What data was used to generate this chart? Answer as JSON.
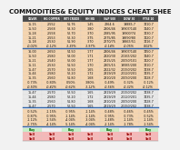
{
  "title": "COMMODITIES& EQUITY INDICES CHEAT SHEE",
  "columns": [
    "SILVER",
    "HG COPPER",
    "WTI CRUDE",
    "HH NG",
    "S&P 500",
    "DOW 30",
    "FTSE 10"
  ],
  "header_bg": "#4a4a4a",
  "header_fg": "#ffffff",
  "separator_color": "#3366aa",
  "bg_color": "#f2f2f2",
  "sections": [
    {
      "bg": "#f5d5b0",
      "rows": [
        [
          "15.15",
          "2.552",
          "51.76",
          "1.45",
          "2264.6",
          "19885.7",
          "7410.7"
        ],
        [
          "15.50",
          "2.568",
          "53.30",
          "3.80",
          "2306/46",
          "19907/140",
          "7440.7"
        ],
        [
          "15.28",
          "2.558",
          "52.70",
          "3.70",
          "2285/95",
          "19900/74",
          "7430.7"
        ],
        [
          "15.21",
          "2.553",
          "52.30",
          "3.75",
          "2275/85",
          "19890/80",
          "7420.7"
        ],
        [
          "15.18",
          "2.530",
          "51.90",
          "3.70",
          "2270/75",
          "19865/51",
          "7416.7"
        ],
        [
          "-0.02%",
          "-0.12%",
          "3.39%",
          "3.97%",
          "-0.14%",
          "-0.05%",
          "0.02%"
        ]
      ],
      "last_row_italic": true
    },
    {
      "bg": "#f5d5b0",
      "rows": [
        [
          "16.00",
          "2.650",
          "54.50",
          "1.77",
          "2306/46",
          "19907/140",
          "7450.7"
        ],
        [
          "15.50",
          "2.580",
          "53.00",
          "1.71",
          "2320/30",
          "20165/202",
          "7440.7"
        ],
        [
          "15.21",
          "2.540",
          "52.00",
          "1.77",
          "2315/25",
          "20050/101",
          "7420.7"
        ],
        [
          "15.11",
          "2.530",
          "51.50",
          "1.70",
          "2305/15",
          "19985/200",
          "7410.7"
        ],
        [
          "15.47",
          "2.570",
          "52.50",
          "1.65",
          "2322/32",
          "20150/202",
          "7438.7"
        ],
        [
          "15.44",
          "2.580",
          "52.20",
          "1.72",
          "2319/29",
          "20120/201",
          "7435.7"
        ],
        [
          "15.35",
          "2.560",
          "51.80",
          "1.68",
          "2310/20",
          "20050/200",
          "7428.7"
        ],
        [
          "-0.73%",
          "-0.80%",
          "0.50%",
          "3.80%",
          "-0.49%",
          "-0.32%",
          "-0.12%"
        ],
        [
          "-0.50%",
          "-0.42%",
          "-0.62%",
          "3.12%",
          "-0.56%",
          "-0.32%",
          "-0.12%"
        ]
      ],
      "last_row_italic": true
    },
    {
      "bg": "#e8e8e8",
      "rows": [
        [
          "15.47",
          "2.570",
          "52.50",
          "1.65",
          "2319/29",
          "20150/202",
          "7438.7"
        ],
        [
          "15.44",
          "2.580",
          "52.20",
          "1.72",
          "2319/29",
          "20120/201",
          "7435.7"
        ],
        [
          "15.35",
          "2.560",
          "51.80",
          "1.68",
          "2310/20",
          "20050/200",
          "7428.7"
        ],
        [
          "15.47",
          "2.570",
          "52.50",
          "1.65",
          "2319/29",
          "20150/202",
          "7438.7"
        ]
      ],
      "last_row_italic": false
    },
    {
      "bg": "#f5d5b0",
      "rows": [
        [
          "-0.52%",
          "-1.15%",
          "-0.95%",
          "-1.14%",
          "-0.48%",
          "-0.46%",
          "-0.45%"
        ],
        [
          "-0.87%",
          "-0.95%",
          "-1.14%",
          "-1.14%",
          "-0.95%",
          "-0.73%",
          "-0.52%"
        ],
        [
          "-1.12%",
          "-1.54%",
          "-4.04%",
          "-3.04%",
          "-1.48%",
          "-1.14%",
          "-1.14%"
        ],
        [
          "-2.75%",
          "-4.14%",
          "-5.14%",
          "-4.04%",
          "-2.14%",
          "-1.78%",
          "-1.54%"
        ]
      ],
      "last_row_italic": false
    }
  ],
  "buy_sell_rows": [
    {
      "vals": [
        "Buy",
        "",
        "Buy",
        "",
        "Buy",
        "",
        "Buy"
      ],
      "type": "buy"
    },
    {
      "vals": [
        "Sell",
        "Sell",
        "Sell",
        "Sell",
        "Sell",
        "Sell",
        "Sell"
      ],
      "type": "sell"
    },
    {
      "vals": [
        "Sell",
        "Sell",
        "Sell",
        "Sell",
        "Sell",
        "Sell",
        "Sell"
      ],
      "type": "sell"
    }
  ],
  "buy_bg": "#c8f0c8",
  "buy_fg": "#006600",
  "sell_bg": "#f5b8b8",
  "sell_fg": "#990000",
  "title_fontsize": 5.0,
  "header_fontsize": 2.0,
  "cell_fontsize": 2.4
}
